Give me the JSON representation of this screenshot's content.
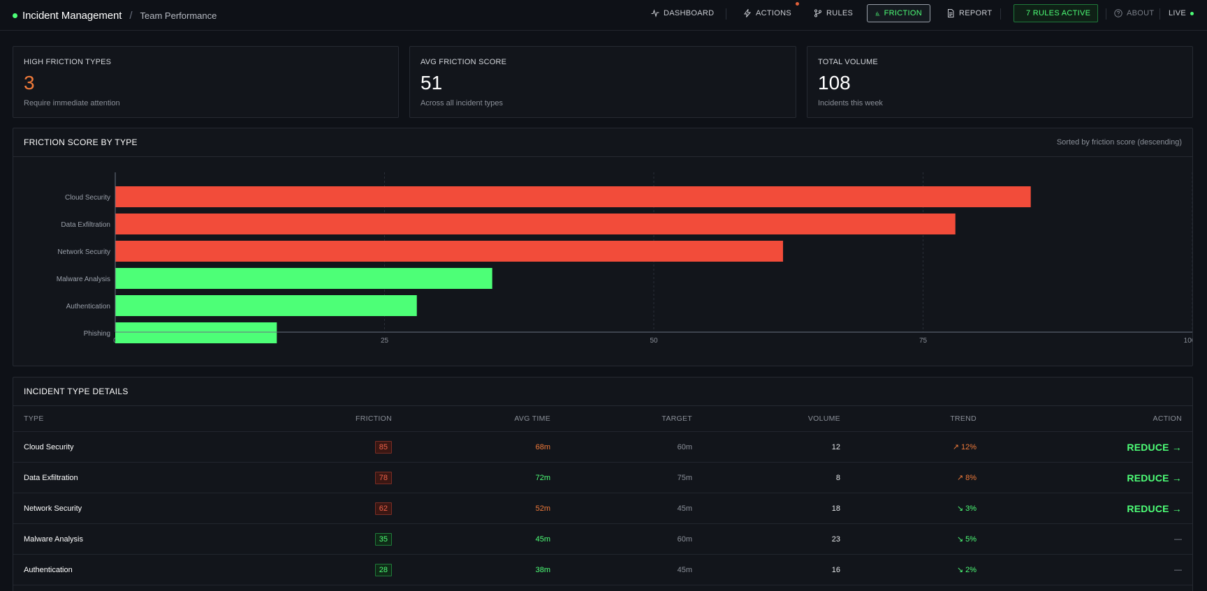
{
  "header": {
    "title": "Incident Management",
    "separator": "/",
    "subtitle": "Team Performance"
  },
  "nav": {
    "dashboard": "DASHBOARD",
    "actions": "ACTIONS",
    "rules": "RULES",
    "friction": "FRICTION",
    "report": "REPORT",
    "rules_active": "7 RULES ACTIVE",
    "about": "ABOUT",
    "live": "LIVE"
  },
  "stats": [
    {
      "label": "HIGH FRICTION TYPES",
      "value": "3",
      "sub": "Require immediate attention"
    },
    {
      "label": "AVG FRICTION SCORE",
      "value": "51",
      "sub": "Across all incident types"
    },
    {
      "label": "TOTAL VOLUME",
      "value": "108",
      "sub": "Incidents this week"
    }
  ],
  "chart_panel": {
    "title": "FRICTION SCORE BY TYPE",
    "note": "Sorted by friction score (descending)"
  },
  "chart_data": {
    "type": "bar",
    "orientation": "horizontal",
    "categories": [
      "Cloud Security",
      "Data Exfiltration",
      "Network Security",
      "Malware Analysis",
      "Authentication",
      "Phishing"
    ],
    "values": [
      85,
      78,
      62,
      35,
      28,
      15
    ],
    "colors": [
      "#f24c3a",
      "#f24c3a",
      "#f24c3a",
      "#4dff77",
      "#4dff77",
      "#4dff77"
    ],
    "xlim": [
      0,
      100
    ],
    "xticks": [
      "0",
      "25",
      "50",
      "75",
      "100"
    ],
    "grid": "vertical dashed"
  },
  "table": {
    "title": "INCIDENT TYPE DETAILS",
    "headers": [
      "TYPE",
      "FRICTION",
      "AVG TIME",
      "TARGET",
      "VOLUME",
      "TREND",
      "ACTION"
    ],
    "rows": [
      {
        "type": "Cloud Security",
        "friction": "85",
        "level": "red",
        "avg": "68m",
        "avg_color": "orange",
        "target": "60m",
        "volume": "12",
        "trend": "↗ 12%",
        "trend_color": "orange",
        "action": "REDUCE →"
      },
      {
        "type": "Data Exfiltration",
        "friction": "78",
        "level": "red",
        "avg": "72m",
        "avg_color": "green",
        "target": "75m",
        "volume": "8",
        "trend": "↗ 8%",
        "trend_color": "orange",
        "action": "REDUCE →"
      },
      {
        "type": "Network Security",
        "friction": "62",
        "level": "red",
        "avg": "52m",
        "avg_color": "orange",
        "target": "45m",
        "volume": "18",
        "trend": "↘ 3%",
        "trend_color": "green",
        "action": "REDUCE →"
      },
      {
        "type": "Malware Analysis",
        "friction": "35",
        "level": "green",
        "avg": "45m",
        "avg_color": "green",
        "target": "60m",
        "volume": "23",
        "trend": "↘ 5%",
        "trend_color": "green",
        "action": "—"
      },
      {
        "type": "Authentication",
        "friction": "28",
        "level": "green",
        "avg": "38m",
        "avg_color": "green",
        "target": "45m",
        "volume": "16",
        "trend": "↘ 2%",
        "trend_color": "green",
        "action": "—"
      }
    ]
  }
}
